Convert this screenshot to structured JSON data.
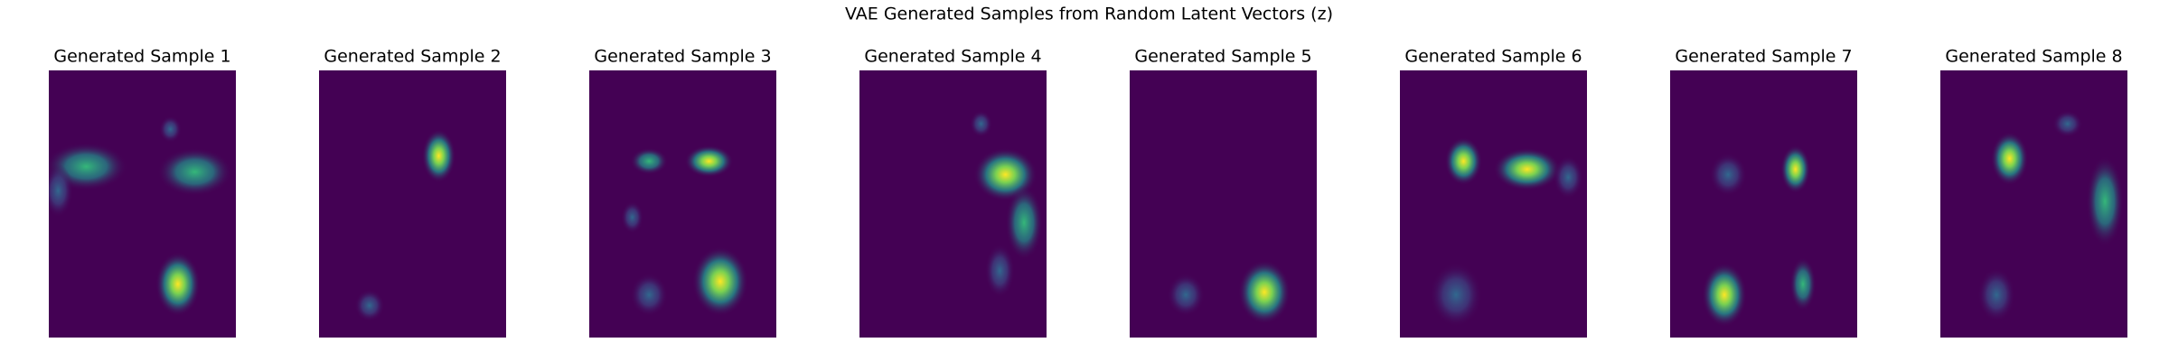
{
  "title": "VAE Generated Samples from Random Latent Vectors (z)",
  "panels": [
    {
      "title": "Generated Sample 1"
    },
    {
      "title": "Generated Sample 2"
    },
    {
      "title": "Generated Sample 3"
    },
    {
      "title": "Generated Sample 4"
    },
    {
      "title": "Generated Sample 5"
    },
    {
      "title": "Generated Sample 6"
    },
    {
      "title": "Generated Sample 7"
    },
    {
      "title": "Generated Sample 8"
    }
  ]
}
